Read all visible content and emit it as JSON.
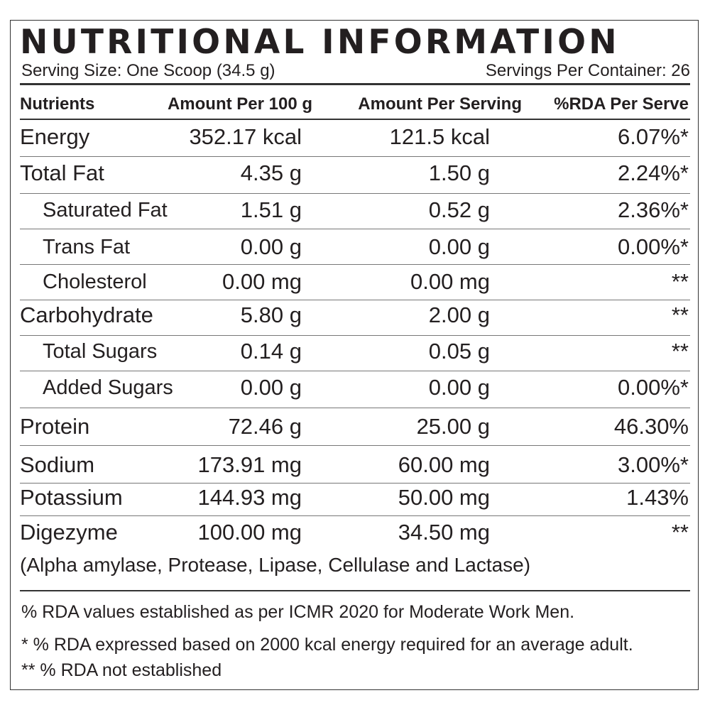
{
  "title": "NUTRITIONAL INFORMATION",
  "serving_size": "Serving Size: One Scoop (34.5 g)",
  "servings_per_container": "Servings Per Container: 26",
  "headers": [
    "Nutrients",
    "Amount Per 100 g",
    "Amount Per Serving",
    "%RDA Per Serve"
  ],
  "rows": [
    {
      "name": "Energy",
      "per100": "352.17 kcal",
      "perServing": "121.5 kcal",
      "rda": "6.07%*",
      "indent": false
    },
    {
      "name": "Total Fat",
      "per100": "4.35 g",
      "perServing": "1.50 g",
      "rda": "2.24%*",
      "indent": false
    },
    {
      "name": "Saturated Fat",
      "per100": "1.51 g",
      "perServing": "0.52 g",
      "rda": "2.36%*",
      "indent": true
    },
    {
      "name": "Trans Fat",
      "per100": "0.00 g",
      "perServing": "0.00 g",
      "rda": "0.00%*",
      "indent": true
    },
    {
      "name": "Cholesterol",
      "per100": "0.00 mg",
      "perServing": "0.00 mg",
      "rda": "**",
      "indent": true
    },
    {
      "name": "Carbohydrate",
      "per100": "5.80 g",
      "perServing": "2.00 g",
      "rda": "**",
      "indent": false
    },
    {
      "name": "Total Sugars",
      "per100": "0.14 g",
      "perServing": "0.05 g",
      "rda": "**",
      "indent": true
    },
    {
      "name": "Added Sugars",
      "per100": "0.00 g",
      "perServing": "0.00 g",
      "rda": "0.00%*",
      "indent": true
    },
    {
      "name": "Protein",
      "per100": "72.46 g",
      "perServing": "25.00 g",
      "rda": "46.30%",
      "indent": false
    },
    {
      "name": "Sodium",
      "per100": "173.91 mg",
      "perServing": "60.00 mg",
      "rda": "3.00%*",
      "indent": false
    },
    {
      "name": "Potassium",
      "per100": "144.93 mg",
      "perServing": "50.00 mg",
      "rda": "1.43%",
      "indent": false
    },
    {
      "name": "Digezyme",
      "per100": "100.00 mg",
      "perServing": "34.50 mg",
      "rda": "**",
      "indent": false
    }
  ],
  "digezyme_note": "(Alpha amylase, Protease, Lipase, Cellulase and Lactase)",
  "footnotes": [
    "% RDA values established as per ICMR 2020 for Moderate Work Men.",
    "* % RDA expressed based on 2000 kcal energy required for an average adult.",
    "** % RDA not established"
  ]
}
